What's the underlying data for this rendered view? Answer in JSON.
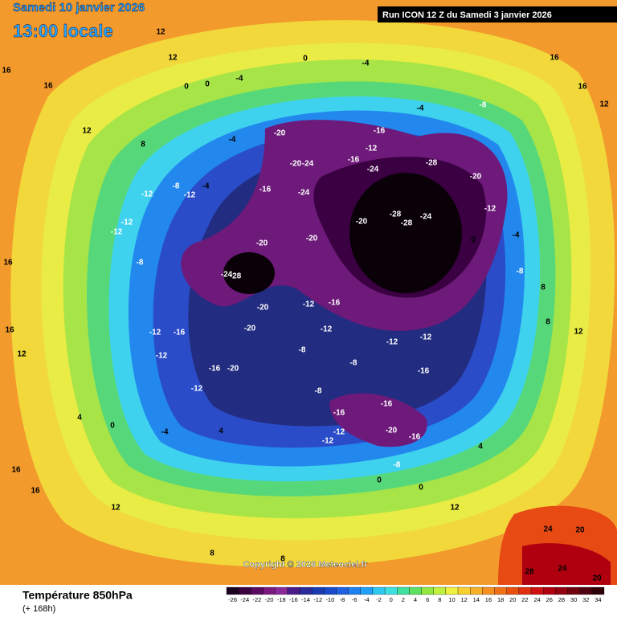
{
  "header": {
    "date": "Samedi 10 janvier 2026",
    "time": "13:00 locale",
    "run": "Run ICON 12 Z du Samedi 3 janvier 2026"
  },
  "footer": {
    "title": "Température 850hPa",
    "lead": "(+ 168h)",
    "copyright": "Copyright © 2026 Meteociel.fr"
  },
  "legend": {
    "ticks": [
      -26,
      -24,
      -22,
      -20,
      -18,
      -16,
      -14,
      -12,
      -10,
      -8,
      -6,
      -4,
      -2,
      0,
      2,
      4,
      6,
      8,
      10,
      12,
      14,
      16,
      18,
      20,
      22,
      24,
      26,
      28,
      30,
      32,
      34
    ],
    "colors": [
      "#1a0020",
      "#3a0040",
      "#5a0a60",
      "#7a1a80",
      "#8a2a9a",
      "#4a1a8a",
      "#2a2a9a",
      "#1a3ab0",
      "#1a4ac8",
      "#2060e0",
      "#2080f0",
      "#20a0f8",
      "#30c8f0",
      "#40e0e0",
      "#40e0a0",
      "#60e060",
      "#90e840",
      "#c0f040",
      "#f0f040",
      "#f8d030",
      "#f8b028",
      "#f89020",
      "#f07018",
      "#e85010",
      "#e03010",
      "#d01010",
      "#b00010",
      "#900010",
      "#700010",
      "#500010",
      "#300008"
    ]
  },
  "map_labels": [
    12,
    12,
    16,
    16,
    0,
    0,
    -4,
    0,
    -4,
    -4,
    -8,
    12,
    8,
    -4,
    -20,
    -16,
    -12,
    -28,
    -20,
    -24,
    -16,
    -24,
    -20,
    -24,
    -16,
    -12,
    -12,
    -8,
    -4,
    -20,
    -28,
    -28,
    -24,
    -12,
    -12,
    -12,
    -20,
    -20,
    -8,
    -24,
    -28,
    -12,
    -16,
    -20,
    -12,
    -12,
    -16,
    -20,
    -12,
    -12,
    -12,
    -16,
    -20,
    -8,
    -12,
    -8,
    -16,
    -8,
    -16,
    -16,
    -12,
    -12,
    -20,
    -16,
    -8,
    4,
    0,
    -4,
    4,
    0,
    0,
    12,
    12,
    16,
    16,
    8,
    8,
    24,
    28,
    24,
    20,
    20,
    4,
    8,
    8,
    12,
    12,
    16,
    16,
    0,
    -4,
    -8,
    12,
    16,
    16
  ]
}
